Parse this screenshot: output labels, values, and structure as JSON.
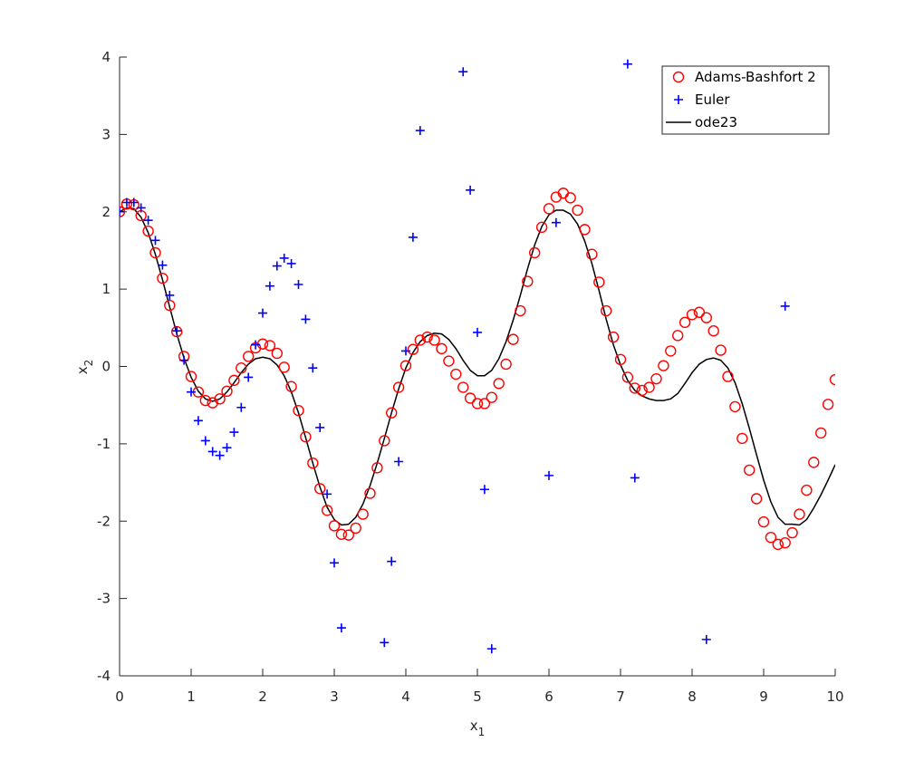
{
  "chart_data": {
    "type": "scatter_line",
    "x_label": {
      "text": "x",
      "subscript": "1"
    },
    "y_label": {
      "text": "x",
      "subscript": "2"
    },
    "xlim": [
      0,
      10
    ],
    "xticks": [
      0,
      1,
      2,
      3,
      4,
      5,
      6,
      7,
      8,
      9,
      10
    ],
    "ylim": [
      -4,
      4
    ],
    "yticks": [
      -4,
      -3,
      -2,
      -1,
      0,
      1,
      2,
      3,
      4
    ],
    "legend_position": "northeast",
    "x": [
      0,
      0.1,
      0.2,
      0.3,
      0.4,
      0.5,
      0.6,
      0.7,
      0.8,
      0.9,
      1,
      1.1,
      1.2,
      1.3,
      1.4,
      1.5,
      1.6,
      1.7,
      1.8,
      1.9,
      2,
      2.1,
      2.2,
      2.3,
      2.4,
      2.5,
      2.6,
      2.7,
      2.8,
      2.9,
      3,
      3.1,
      3.2,
      3.3,
      3.4,
      3.5,
      3.6,
      3.7,
      3.8,
      3.9,
      4,
      4.1,
      4.2,
      4.3,
      4.4,
      4.5,
      4.6,
      4.7,
      4.8,
      4.9,
      5,
      5.1,
      5.2,
      5.3,
      5.4,
      5.5,
      5.6,
      5.7,
      5.8,
      5.9,
      6,
      6.1,
      6.2,
      6.3,
      6.4,
      6.5,
      6.6,
      6.7,
      6.8,
      6.9,
      7,
      7.1,
      7.2,
      7.3,
      7.4,
      7.5,
      7.6,
      7.7,
      7.8,
      7.9,
      8,
      8.1,
      8.2,
      8.3,
      8.4,
      8.5,
      8.6,
      8.7,
      8.8,
      8.9,
      9,
      9.1,
      9.2,
      9.3,
      9.4,
      9.5,
      9.6,
      9.7,
      9.8,
      9.9,
      10
    ],
    "series": [
      {
        "name": "Adams-Bashfort 2",
        "color": "#ff0000",
        "marker": "circle",
        "values": [
          2.0,
          2.1,
          2.09,
          1.95,
          1.75,
          1.47,
          1.14,
          0.79,
          0.45,
          0.13,
          -0.13,
          -0.33,
          -0.44,
          -0.47,
          -0.42,
          -0.32,
          -0.18,
          -0.02,
          0.13,
          0.24,
          0.29,
          0.27,
          0.17,
          -0.01,
          -0.26,
          -0.57,
          -0.91,
          -1.25,
          -1.58,
          -1.86,
          -2.06,
          -2.17,
          -2.18,
          -2.09,
          -1.91,
          -1.64,
          -1.31,
          -0.96,
          -0.6,
          -0.27,
          0.01,
          0.22,
          0.34,
          0.38,
          0.34,
          0.23,
          0.07,
          -0.1,
          -0.27,
          -0.41,
          -0.48,
          -0.48,
          -0.4,
          -0.22,
          0.03,
          0.35,
          0.72,
          1.1,
          1.47,
          1.8,
          2.04,
          2.19,
          2.24,
          2.18,
          2.02,
          1.77,
          1.45,
          1.09,
          0.72,
          0.38,
          0.09,
          -0.14,
          -0.28,
          -0.31,
          -0.27,
          -0.16,
          0.01,
          0.2,
          0.4,
          0.57,
          0.67,
          0.7,
          0.63,
          0.46,
          0.21,
          -0.13,
          -0.52,
          -0.93,
          -1.34,
          -1.71,
          -2.01,
          -2.21,
          -2.3,
          -2.28,
          -2.15,
          -1.91,
          -1.6,
          -1.24,
          -0.86,
          -0.49,
          -0.17
        ]
      },
      {
        "name": "Euler",
        "color": "#0000ff",
        "marker": "plus",
        "x": [
          0,
          0.1,
          0.2,
          0.3,
          0.4,
          0.5,
          0.6,
          0.7,
          0.8,
          0.9,
          1,
          1.1,
          1.2,
          1.3,
          1.4,
          1.5,
          1.6,
          1.7,
          1.8,
          1.9,
          2,
          2.1,
          2.2,
          2.3,
          2.4,
          2.5,
          2.6,
          2.7,
          2.8,
          2.9,
          3,
          3.1,
          3.7,
          3.8,
          3.9,
          4,
          4.1,
          4.2,
          4.8,
          4.9,
          5,
          5.1,
          5.2,
          6,
          6.1,
          7.1,
          7.2,
          8.2,
          9.3
        ],
        "values": [
          2.0,
          2.12,
          2.12,
          2.05,
          1.89,
          1.63,
          1.31,
          0.92,
          0.46,
          0.08,
          -0.33,
          -0.7,
          -0.96,
          -1.1,
          -1.15,
          -1.05,
          -0.85,
          -0.53,
          -0.14,
          0.28,
          0.69,
          1.04,
          1.3,
          1.4,
          1.33,
          1.06,
          0.61,
          -0.02,
          -0.79,
          -1.65,
          -2.54,
          -3.38,
          -3.57,
          -2.52,
          -1.23,
          0.2,
          1.67,
          3.05,
          3.81,
          2.28,
          0.44,
          -1.59,
          -3.65,
          -1.41,
          1.86,
          3.91,
          -1.44,
          -3.53,
          0.78
        ]
      },
      {
        "name": "ode23",
        "color": "#000000",
        "marker": "line",
        "values": [
          2.0,
          2.05,
          2.04,
          1.93,
          1.73,
          1.45,
          1.12,
          0.77,
          0.42,
          0.11,
          -0.14,
          -0.32,
          -0.42,
          -0.45,
          -0.42,
          -0.33,
          -0.21,
          -0.08,
          0.03,
          0.1,
          0.12,
          0.1,
          0.02,
          -0.12,
          -0.33,
          -0.6,
          -0.92,
          -1.25,
          -1.56,
          -1.82,
          -1.98,
          -2.05,
          -2.04,
          -1.95,
          -1.78,
          -1.54,
          -1.25,
          -0.93,
          -0.6,
          -0.29,
          -0.02,
          0.18,
          0.32,
          0.4,
          0.43,
          0.42,
          0.35,
          0.23,
          0.08,
          -0.05,
          -0.12,
          -0.12,
          -0.05,
          0.1,
          0.32,
          0.6,
          0.92,
          1.26,
          1.57,
          1.81,
          1.96,
          2.02,
          2.02,
          1.97,
          1.84,
          1.62,
          1.33,
          0.98,
          0.61,
          0.28,
          0.02,
          -0.18,
          -0.31,
          -0.38,
          -0.42,
          -0.44,
          -0.44,
          -0.42,
          -0.35,
          -0.22,
          -0.08,
          0.03,
          0.09,
          0.11,
          0.08,
          -0.02,
          -0.21,
          -0.48,
          -0.8,
          -1.14,
          -1.47,
          -1.75,
          -1.95,
          -2.04,
          -2.04,
          -2.05,
          -1.98,
          -1.83,
          -1.66,
          -1.47,
          -1.27
        ]
      }
    ]
  }
}
